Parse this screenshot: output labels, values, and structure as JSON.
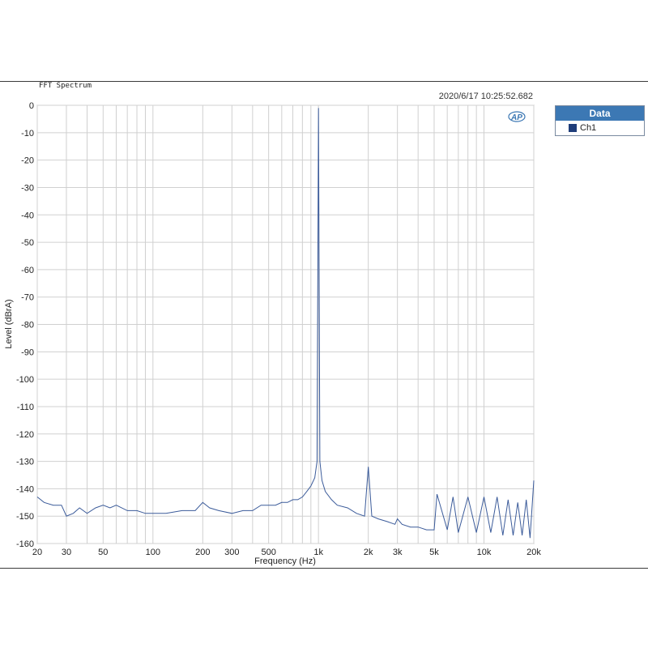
{
  "chart_title": "FFT Spectrum",
  "timestamp": "2020/6/17 10:25:52.682",
  "legend": {
    "header": "Data",
    "items": [
      {
        "label": "Ch1",
        "color": "#1f3d7a"
      }
    ]
  },
  "logo_text": "AP",
  "colors": {
    "trace": "#3b5b9a",
    "grid": "#d0d0d0",
    "legend_header": "#3c78b4"
  },
  "chart_data": {
    "type": "line",
    "title": "FFT Spectrum",
    "xlabel": "Frequency (Hz)",
    "ylabel": "Level (dBrA)",
    "xscale": "log",
    "xlim": [
      20,
      20000
    ],
    "ylim": [
      -160,
      0
    ],
    "grid": true,
    "legend_position": "right",
    "x_ticks": [
      20,
      30,
      50,
      100,
      200,
      300,
      500,
      1000,
      2000,
      3000,
      5000,
      10000,
      20000
    ],
    "x_tick_labels": [
      "20",
      "30",
      "50",
      "100",
      "200",
      "300",
      "500",
      "1k",
      "2k",
      "3k",
      "5k",
      "10k",
      "20k"
    ],
    "y_ticks": [
      0,
      -10,
      -20,
      -30,
      -40,
      -50,
      -60,
      -70,
      -80,
      -90,
      -100,
      -110,
      -120,
      -130,
      -140,
      -150,
      -160
    ],
    "series": [
      {
        "name": "Ch1",
        "x": [
          20,
          22,
          25,
          28,
          30,
          33,
          36,
          40,
          45,
          50,
          55,
          60,
          70,
          80,
          90,
          100,
          120,
          150,
          180,
          200,
          220,
          250,
          300,
          350,
          400,
          450,
          500,
          550,
          600,
          650,
          700,
          750,
          800,
          850,
          900,
          950,
          980,
          1000,
          1020,
          1050,
          1100,
          1200,
          1300,
          1500,
          1700,
          1900,
          2000,
          2100,
          2300,
          2600,
          2900,
          3000,
          3200,
          3600,
          4000,
          4500,
          5000,
          5200,
          6000,
          6500,
          7000,
          8000,
          9000,
          10000,
          11000,
          12000,
          13000,
          14000,
          15000,
          16000,
          17000,
          18000,
          19000,
          20000
        ],
        "values": [
          -143,
          -145,
          -146,
          -146,
          -150,
          -149,
          -147,
          -149,
          -147,
          -146,
          -147,
          -146,
          -148,
          -148,
          -149,
          -149,
          -149,
          -148,
          -148,
          -145,
          -147,
          -148,
          -149,
          -148,
          -148,
          -146,
          -146,
          -146,
          -145,
          -145,
          -144,
          -144,
          -143,
          -141,
          -139,
          -136,
          -130,
          -1,
          -130,
          -137,
          -141,
          -144,
          -146,
          -147,
          -149,
          -150,
          -132,
          -150,
          -151,
          -152,
          -153,
          -151,
          -153,
          -154,
          -154,
          -155,
          -155,
          -142,
          -155,
          -143,
          -156,
          -143,
          -156,
          -143,
          -156,
          -143,
          -157,
          -144,
          -157,
          -145,
          -157,
          -144,
          -158,
          -137
        ]
      }
    ]
  }
}
